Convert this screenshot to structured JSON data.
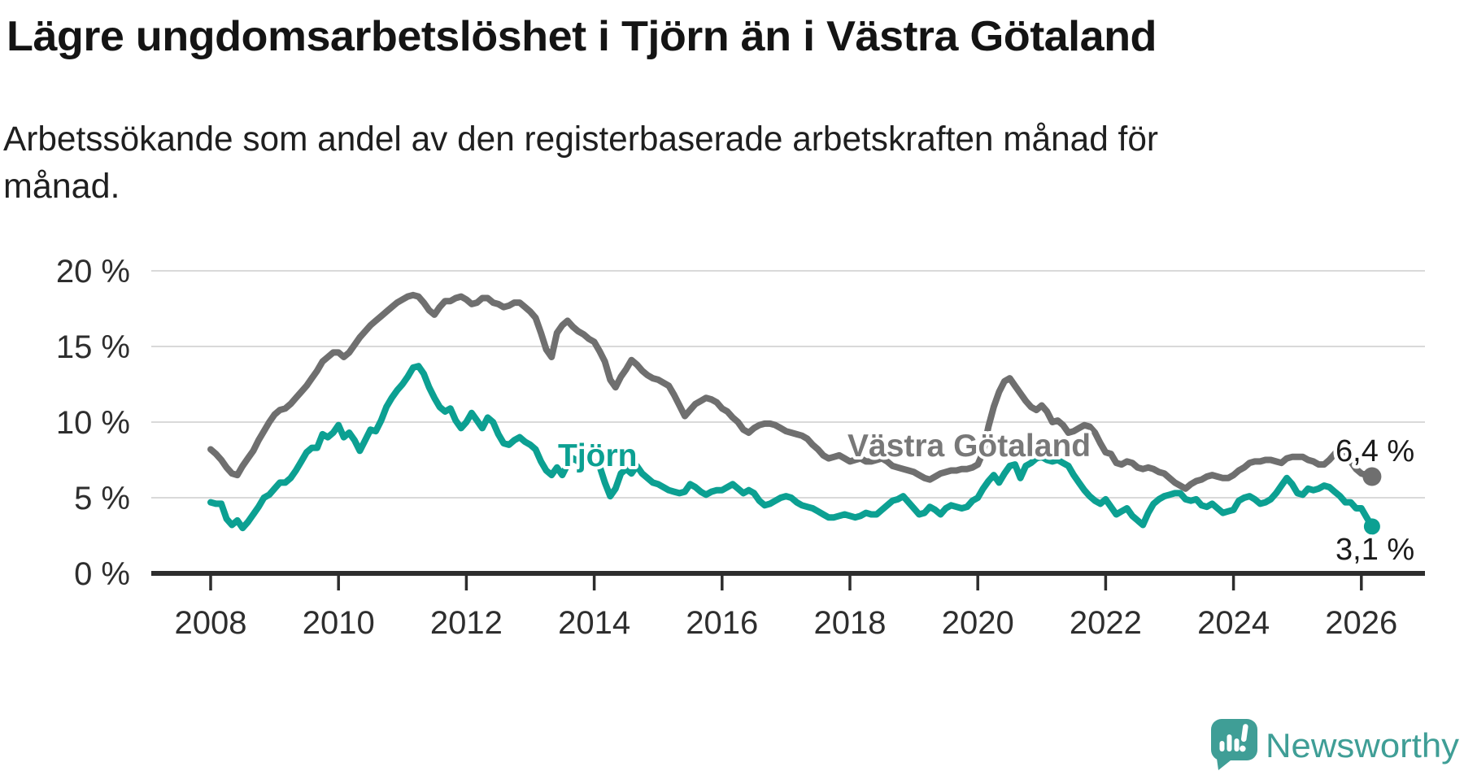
{
  "title": "Lägre ungdomsarbetslöshet i Tjörn än i Västra Götaland",
  "subtitle_lines": [
    "Arbetssökande som andel av den registerbaserade arbetskraften månad för",
    "månad."
  ],
  "footer": {
    "logo_text": "Newsworthy",
    "logo_color": "#3F9E96"
  },
  "chart_data": {
    "type": "line",
    "title": "Lägre ungdomsarbetslöshet i Tjörn än i Västra Götaland",
    "unit": "%",
    "grid": true,
    "legend": "inline-labels",
    "x_axis": {
      "start_year": 2008,
      "step_months": 1,
      "range": [
        2007.05,
        2026.95
      ],
      "ticks": [
        2008,
        2010,
        2012,
        2014,
        2016,
        2018,
        2020,
        2022,
        2024,
        2026
      ]
    },
    "y_axis": {
      "range": [
        0,
        20
      ],
      "ticks": [
        {
          "value": 20,
          "label": "20 %"
        },
        {
          "value": 15,
          "label": "15 %"
        },
        {
          "value": 10,
          "label": "10 %"
        },
        {
          "value": 5,
          "label": "5 %"
        },
        {
          "value": 0,
          "label": "0 %"
        }
      ]
    },
    "series": [
      {
        "name": "Västra Götaland",
        "color": "#6F6F6F",
        "label_color": "#787878",
        "end_label": "6,4 %",
        "last_value": 6.4,
        "values": [
          8.2,
          7.9,
          7.5,
          7.0,
          6.6,
          6.5,
          7.1,
          7.6,
          8.1,
          8.8,
          9.4,
          10.0,
          10.5,
          10.8,
          10.9,
          11.2,
          11.6,
          12.0,
          12.4,
          12.9,
          13.4,
          14.0,
          14.3,
          14.6,
          14.6,
          14.3,
          14.6,
          15.1,
          15.6,
          16.0,
          16.4,
          16.7,
          17.0,
          17.3,
          17.6,
          17.9,
          18.1,
          18.3,
          18.4,
          18.3,
          17.9,
          17.4,
          17.1,
          17.6,
          18.0,
          18.0,
          18.2,
          18.3,
          18.1,
          17.8,
          17.9,
          18.2,
          18.2,
          17.9,
          17.8,
          17.6,
          17.7,
          17.9,
          17.9,
          17.6,
          17.3,
          16.9,
          15.9,
          14.8,
          14.3,
          15.9,
          16.4,
          16.7,
          16.3,
          16.0,
          15.8,
          15.5,
          15.3,
          14.7,
          14.0,
          12.8,
          12.3,
          13.0,
          13.5,
          14.1,
          13.8,
          13.4,
          13.1,
          12.9,
          12.8,
          12.6,
          12.4,
          11.8,
          11.1,
          10.4,
          10.8,
          11.2,
          11.4,
          11.6,
          11.5,
          11.3,
          10.9,
          10.7,
          10.3,
          10.0,
          9.5,
          9.3,
          9.6,
          9.8,
          9.9,
          9.9,
          9.8,
          9.6,
          9.4,
          9.3,
          9.2,
          9.1,
          8.9,
          8.5,
          8.2,
          7.8,
          7.6,
          7.7,
          7.8,
          7.6,
          7.4,
          7.5,
          7.6,
          7.4,
          7.4,
          7.5,
          7.6,
          7.4,
          7.1,
          7.0,
          6.9,
          6.8,
          6.7,
          6.5,
          6.3,
          6.2,
          6.4,
          6.6,
          6.7,
          6.8,
          6.8,
          6.9,
          6.9,
          7.0,
          7.2,
          8.0,
          9.7,
          11.0,
          12.0,
          12.7,
          12.9,
          12.4,
          11.9,
          11.4,
          11.0,
          10.8,
          11.1,
          10.7,
          10.0,
          10.1,
          9.8,
          9.3,
          9.4,
          9.6,
          9.8,
          9.7,
          9.3,
          8.6,
          8.0,
          7.9,
          7.3,
          7.2,
          7.4,
          7.3,
          7.0,
          6.9,
          7.0,
          6.9,
          6.7,
          6.6,
          6.3,
          6.0,
          5.8,
          5.6,
          5.9,
          6.1,
          6.2,
          6.4,
          6.5,
          6.4,
          6.3,
          6.3,
          6.5,
          6.8,
          7.0,
          7.3,
          7.4,
          7.4,
          7.5,
          7.5,
          7.4,
          7.3,
          7.6,
          7.7,
          7.7,
          7.7,
          7.5,
          7.4,
          7.2,
          7.2,
          7.5,
          7.9,
          8.3,
          8.0,
          7.4,
          6.9,
          6.6,
          6.5,
          6.4
        ]
      },
      {
        "name": "Tjörn",
        "color": "#0CA092",
        "label_color": "#0CA092",
        "end_label": "3,1 %",
        "last_value": 3.1,
        "values": [
          4.7,
          4.6,
          4.6,
          3.6,
          3.2,
          3.5,
          3.0,
          3.4,
          3.9,
          4.4,
          5.0,
          5.2,
          5.6,
          6.0,
          6.0,
          6.3,
          6.8,
          7.4,
          8.0,
          8.3,
          8.3,
          9.2,
          9.0,
          9.3,
          9.8,
          9.0,
          9.3,
          8.8,
          8.1,
          8.8,
          9.5,
          9.4,
          10.1,
          11.0,
          11.6,
          12.1,
          12.5,
          13.0,
          13.6,
          13.7,
          13.2,
          12.3,
          11.6,
          11.0,
          10.7,
          10.9,
          10.1,
          9.6,
          10.0,
          10.6,
          10.1,
          9.6,
          10.3,
          10.0,
          9.2,
          8.6,
          8.5,
          8.8,
          9.0,
          8.7,
          8.5,
          8.2,
          7.4,
          6.8,
          6.5,
          7.0,
          6.5,
          7.2,
          7.6,
          7.4,
          7.5,
          7.6,
          7.3,
          7.1,
          6.0,
          5.1,
          5.6,
          6.6,
          6.9,
          6.6,
          7.1,
          6.6,
          6.3,
          6.0,
          5.9,
          5.7,
          5.5,
          5.4,
          5.3,
          5.4,
          5.9,
          5.7,
          5.4,
          5.2,
          5.4,
          5.5,
          5.5,
          5.7,
          5.9,
          5.6,
          5.3,
          5.5,
          5.3,
          4.8,
          4.5,
          4.6,
          4.8,
          5.0,
          5.1,
          5.0,
          4.7,
          4.5,
          4.4,
          4.3,
          4.1,
          3.9,
          3.7,
          3.7,
          3.8,
          3.9,
          3.8,
          3.7,
          3.8,
          4.0,
          3.9,
          3.9,
          4.2,
          4.5,
          4.8,
          4.9,
          5.1,
          4.7,
          4.3,
          3.9,
          4.0,
          4.4,
          4.2,
          3.9,
          4.3,
          4.5,
          4.4,
          4.3,
          4.4,
          4.8,
          5.0,
          5.6,
          6.1,
          6.5,
          6.0,
          6.6,
          7.1,
          7.2,
          6.3,
          7.1,
          7.3,
          7.6,
          7.7,
          7.5,
          7.4,
          7.5,
          7.3,
          7.1,
          6.5,
          6.0,
          5.5,
          5.1,
          4.8,
          4.6,
          4.9,
          4.4,
          3.9,
          4.1,
          4.3,
          3.8,
          3.5,
          3.2,
          4.0,
          4.6,
          4.9,
          5.1,
          5.2,
          5.3,
          5.3,
          4.9,
          4.8,
          4.9,
          4.5,
          4.4,
          4.6,
          4.3,
          4.0,
          4.1,
          4.2,
          4.8,
          5.0,
          5.1,
          4.9,
          4.6,
          4.7,
          4.9,
          5.3,
          5.8,
          6.3,
          5.9,
          5.3,
          5.2,
          5.6,
          5.5,
          5.6,
          5.8,
          5.7,
          5.4,
          5.1,
          4.7,
          4.7,
          4.3,
          4.3,
          3.7,
          3.1
        ]
      }
    ]
  }
}
